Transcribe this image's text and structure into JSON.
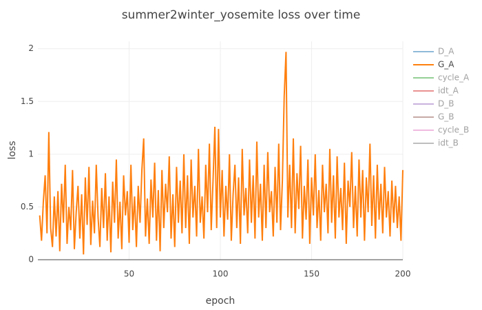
{
  "chart_data": {
    "type": "line",
    "title": "summer2winter_yosemite loss over time",
    "xlabel": "epoch",
    "ylabel": "loss",
    "xlim": [
      0,
      200
    ],
    "xticks": [
      50,
      100,
      150,
      200
    ],
    "ylim": [
      0,
      2.07
    ],
    "yticks": [
      0,
      0.5,
      1,
      1.5,
      2
    ],
    "grid": true,
    "legend": "right",
    "x": [
      1,
      2,
      3,
      4,
      5,
      6,
      7,
      8,
      9,
      10,
      11,
      12,
      13,
      14,
      15,
      16,
      17,
      18,
      19,
      20,
      21,
      22,
      23,
      24,
      25,
      26,
      27,
      28,
      29,
      30,
      31,
      32,
      33,
      34,
      35,
      36,
      37,
      38,
      39,
      40,
      41,
      42,
      43,
      44,
      45,
      46,
      47,
      48,
      49,
      50,
      51,
      52,
      53,
      54,
      55,
      56,
      57,
      58,
      59,
      60,
      61,
      62,
      63,
      64,
      65,
      66,
      67,
      68,
      69,
      70,
      71,
      72,
      73,
      74,
      75,
      76,
      77,
      78,
      79,
      80,
      81,
      82,
      83,
      84,
      85,
      86,
      87,
      88,
      89,
      90,
      91,
      92,
      93,
      94,
      95,
      96,
      97,
      98,
      99,
      100,
      101,
      102,
      103,
      104,
      105,
      106,
      107,
      108,
      109,
      110,
      111,
      112,
      113,
      114,
      115,
      116,
      117,
      118,
      119,
      120,
      121,
      122,
      123,
      124,
      125,
      126,
      127,
      128,
      129,
      130,
      131,
      132,
      133,
      134,
      135,
      136,
      137,
      138,
      139,
      140,
      141,
      142,
      143,
      144,
      145,
      146,
      147,
      148,
      149,
      150,
      151,
      152,
      153,
      154,
      155,
      156,
      157,
      158,
      159,
      160,
      161,
      162,
      163,
      164,
      165,
      166,
      167,
      168,
      169,
      170,
      171,
      172,
      173,
      174,
      175,
      176,
      177,
      178,
      179,
      180,
      181,
      182,
      183,
      184,
      185,
      186,
      187,
      188,
      189,
      190,
      191,
      192,
      193,
      194,
      195,
      196,
      197,
      198,
      199,
      200
    ],
    "series": [
      {
        "name": "D_A",
        "color": "#1f77b4",
        "visible": false
      },
      {
        "name": "G_A",
        "color": "#ff7f0e",
        "visible": true,
        "values": [
          0.42,
          0.18,
          0.55,
          0.8,
          0.25,
          1.21,
          0.3,
          0.12,
          0.6,
          0.22,
          0.65,
          0.08,
          0.72,
          0.35,
          0.9,
          0.15,
          0.5,
          0.28,
          0.85,
          0.1,
          0.45,
          0.7,
          0.2,
          0.62,
          0.05,
          0.78,
          0.33,
          0.88,
          0.14,
          0.56,
          0.25,
          0.9,
          0.4,
          0.12,
          0.68,
          0.3,
          0.82,
          0.18,
          0.6,
          0.07,
          0.74,
          0.35,
          0.95,
          0.2,
          0.55,
          0.1,
          0.8,
          0.42,
          0.65,
          0.16,
          0.9,
          0.28,
          0.6,
          0.12,
          0.7,
          0.35,
          0.85,
          1.15,
          0.22,
          0.58,
          0.15,
          0.76,
          0.4,
          0.92,
          0.18,
          0.66,
          0.08,
          0.85,
          0.3,
          0.72,
          0.45,
          0.98,
          0.2,
          0.62,
          0.12,
          0.88,
          0.35,
          0.75,
          0.25,
          1.0,
          0.3,
          0.8,
          0.15,
          0.95,
          0.4,
          0.7,
          0.22,
          1.05,
          0.35,
          0.6,
          0.2,
          0.9,
          0.45,
          1.1,
          0.28,
          0.75,
          1.26,
          0.3,
          1.24,
          0.4,
          0.85,
          0.22,
          0.7,
          0.38,
          1.0,
          0.18,
          0.62,
          0.9,
          0.3,
          0.78,
          0.15,
          1.05,
          0.42,
          0.68,
          0.25,
          0.95,
          0.35,
          0.8,
          0.2,
          1.12,
          0.4,
          0.72,
          0.18,
          0.9,
          0.3,
          1.02,
          0.45,
          0.65,
          0.22,
          0.88,
          0.35,
          1.1,
          0.28,
          0.75,
          1.55,
          1.97,
          0.4,
          0.9,
          0.3,
          1.15,
          0.25,
          0.82,
          0.48,
          1.08,
          0.2,
          0.7,
          0.38,
          0.95,
          0.15,
          0.78,
          0.42,
          1.0,
          0.3,
          0.66,
          0.18,
          0.9,
          0.45,
          0.72,
          0.25,
          1.05,
          0.35,
          0.8,
          0.2,
          0.98,
          0.4,
          0.68,
          0.28,
          0.92,
          0.15,
          0.75,
          0.5,
          1.02,
          0.3,
          0.7,
          0.22,
          0.95,
          0.4,
          0.85,
          0.18,
          0.78,
          0.45,
          1.1,
          0.32,
          0.8,
          0.2,
          0.9,
          0.38,
          0.72,
          0.25,
          0.88,
          0.4,
          0.65,
          0.22,
          0.75,
          0.35,
          0.7,
          0.3,
          0.6,
          0.18,
          0.85
        ]
      },
      {
        "name": "cycle_A",
        "color": "#2ca02c",
        "visible": false
      },
      {
        "name": "idt_A",
        "color": "#d62728",
        "visible": false
      },
      {
        "name": "D_B",
        "color": "#9467bd",
        "visible": false
      },
      {
        "name": "G_B",
        "color": "#8c564b",
        "visible": false
      },
      {
        "name": "cycle_B",
        "color": "#e377c2",
        "visible": false
      },
      {
        "name": "idt_B",
        "color": "#7f7f7f",
        "visible": false
      }
    ]
  }
}
